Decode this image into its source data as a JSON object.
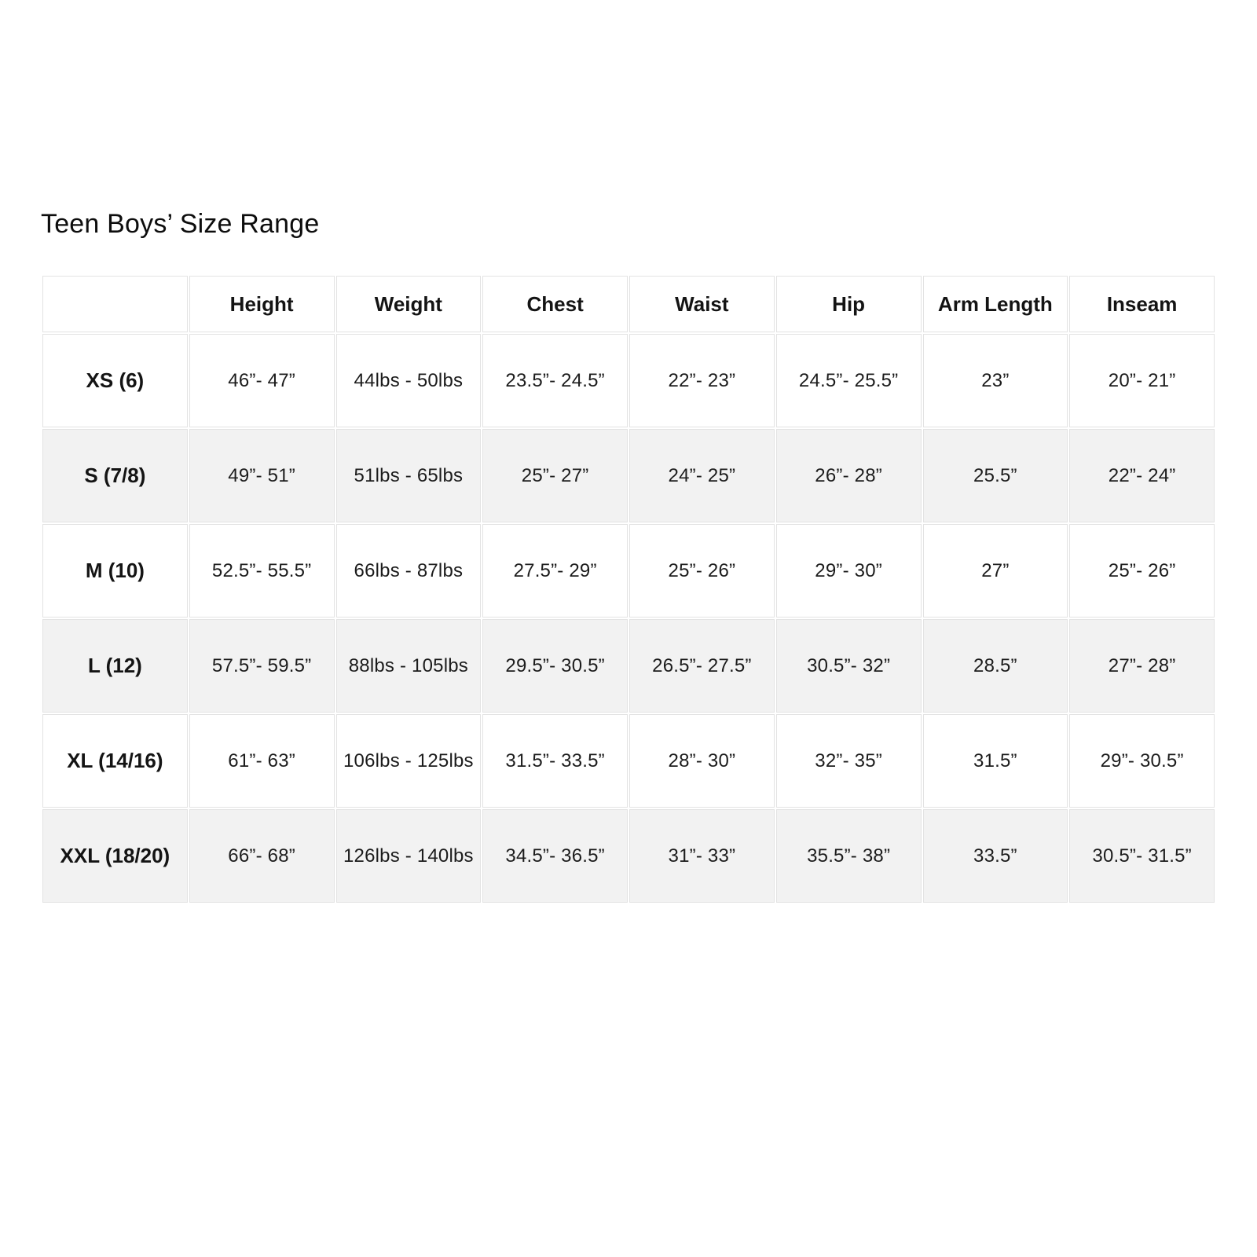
{
  "title": "Teen Boys’ Size Range",
  "colors": {
    "background": "#ffffff",
    "row_alternate": "#f2f2f2",
    "border": "#e3e3e3",
    "text": "#111111"
  },
  "chart_data": {
    "type": "table",
    "title": "Teen Boys’ Size Range",
    "columns": [
      "",
      "Height",
      "Weight",
      "Chest",
      "Waist",
      "Hip",
      "Arm Length",
      "Inseam"
    ],
    "rows": [
      {
        "label": "XS (6)",
        "cells": [
          "46”- 47”",
          "44lbs - 50lbs",
          "23.5”- 24.5”",
          "22”- 23”",
          "24.5”- 25.5”",
          "23”",
          "20”- 21”"
        ]
      },
      {
        "label": "S (7/8)",
        "cells": [
          "49”- 51”",
          "51lbs - 65lbs",
          "25”- 27”",
          "24”- 25”",
          "26”- 28”",
          "25.5”",
          "22”- 24”"
        ]
      },
      {
        "label": "M (10)",
        "cells": [
          "52.5”- 55.5”",
          "66lbs - 87lbs",
          "27.5”- 29”",
          "25”- 26”",
          "29”- 30”",
          "27”",
          "25”- 26”"
        ]
      },
      {
        "label": "L (12)",
        "cells": [
          "57.5”- 59.5”",
          "88lbs - 105lbs",
          "29.5”- 30.5”",
          "26.5”- 27.5”",
          "30.5”- 32”",
          "28.5”",
          "27”- 28”"
        ]
      },
      {
        "label": "XL (14/16)",
        "cells": [
          "61”- 63”",
          "106lbs - 125lbs",
          "31.5”- 33.5”",
          "28”- 30”",
          "32”- 35”",
          "31.5”",
          "29”- 30.5”"
        ]
      },
      {
        "label": "XXL (18/20)",
        "cells": [
          "66”- 68”",
          "126lbs - 140lbs",
          "34.5”- 36.5”",
          "31”- 33”",
          "35.5”- 38”",
          "33.5”",
          "30.5”- 31.5”"
        ]
      }
    ]
  }
}
